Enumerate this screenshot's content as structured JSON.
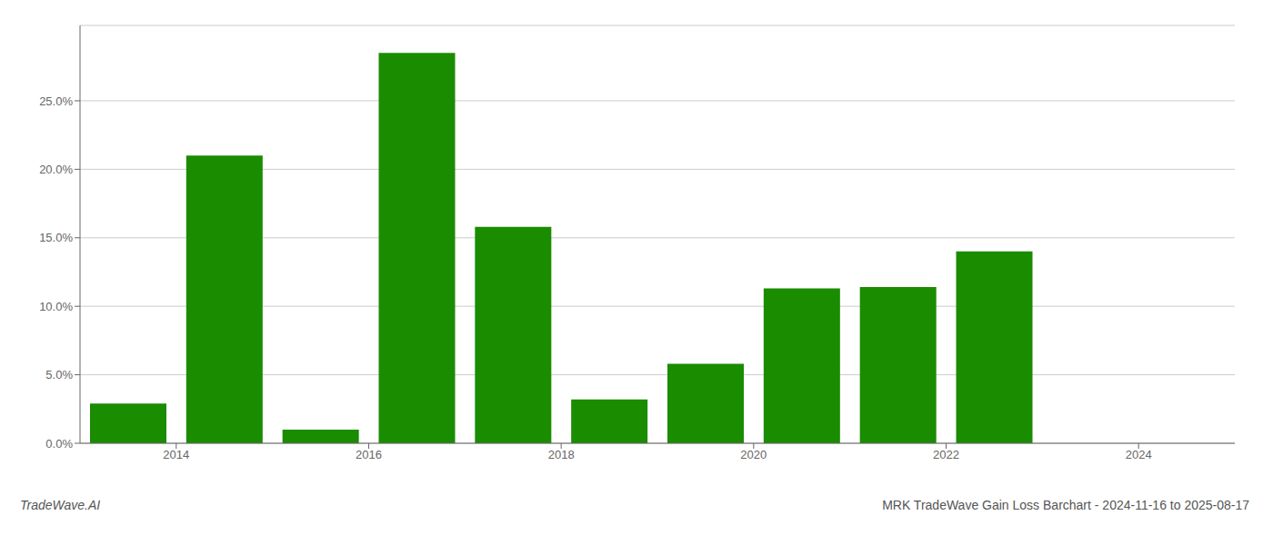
{
  "chart_data": {
    "type": "bar",
    "x": [
      2013.5,
      2014.5,
      2015.5,
      2016.5,
      2017.5,
      2018.5,
      2019.5,
      2020.5,
      2021.5,
      2022.5,
      2023.5
    ],
    "values": [
      0.029,
      0.21,
      0.01,
      0.285,
      0.158,
      0.032,
      0.058,
      0.113,
      0.114,
      0.14,
      0.0
    ],
    "color": "#1a8c00",
    "xlim": [
      2013.0,
      2025.0
    ],
    "xticks": [
      2014,
      2016,
      2018,
      2020,
      2022,
      2024
    ],
    "ylim": [
      0,
      0.305
    ],
    "yticks": [
      {
        "value": 0.0,
        "label": "0.0%"
      },
      {
        "value": 0.05,
        "label": "5.0%"
      },
      {
        "value": 0.1,
        "label": "10.0%"
      },
      {
        "value": 0.15,
        "label": "15.0%"
      },
      {
        "value": 0.2,
        "label": "20.0%"
      },
      {
        "value": 0.25,
        "label": "25.0%"
      }
    ],
    "grid": true,
    "annotations": [
      "TradeWave.AI",
      "MRK TradeWave Gain Loss Barchart - 2024-11-16 to 2025-08-17"
    ]
  }
}
